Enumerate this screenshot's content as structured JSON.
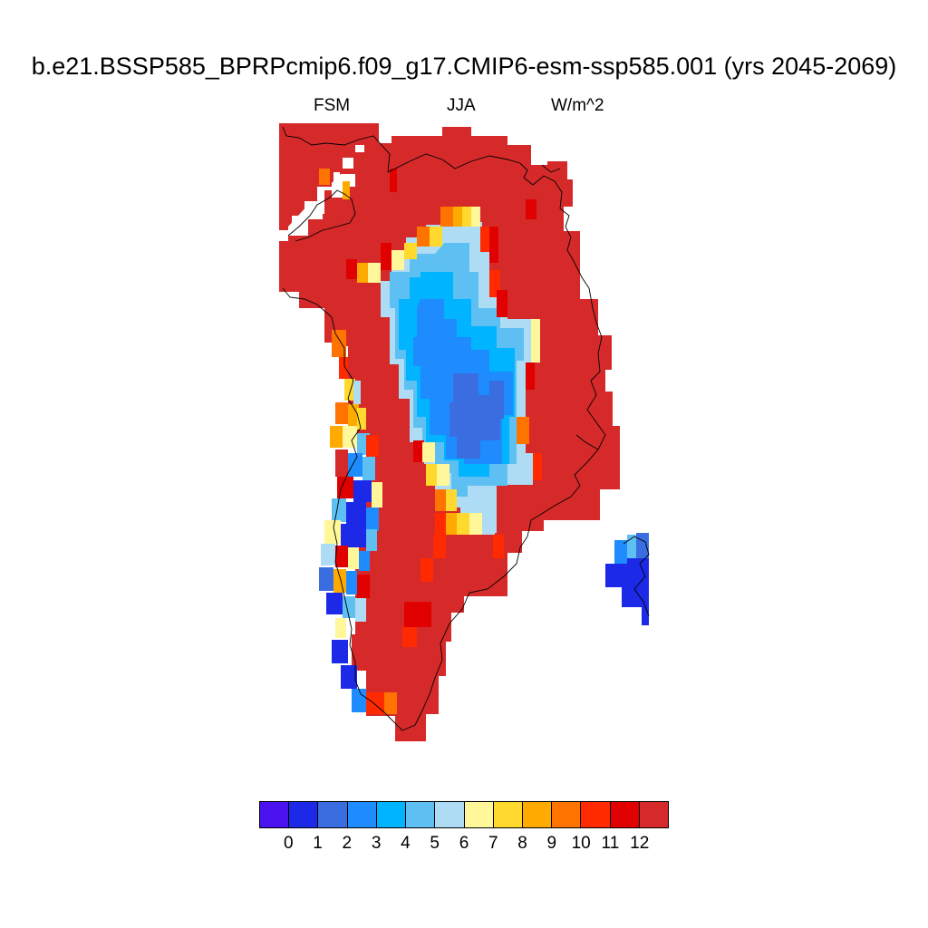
{
  "title": "b.e21.BSSP585_BPRPcmip6.f09_g17.CMIP6-esm-ssp585.001 (yrs 2045-2069)",
  "left_label": "FSM",
  "center_label": "JJA",
  "right_label": "W/m^2",
  "colorbar": {
    "labels": [
      "0",
      "1",
      "2",
      "3",
      "4",
      "5",
      "6",
      "7",
      "8",
      "9",
      "10",
      "11",
      "12"
    ],
    "colors": [
      "#4b12f0",
      "#1c2ae8",
      "#3a6de0",
      "#1e8cff",
      "#00b4ff",
      "#5ec0f2",
      "#aedcf4",
      "#fff799",
      "#ffd92e",
      "#ffaa00",
      "#ff7300",
      "#ff2a00",
      "#e00000",
      "#d62a2a"
    ]
  }
}
